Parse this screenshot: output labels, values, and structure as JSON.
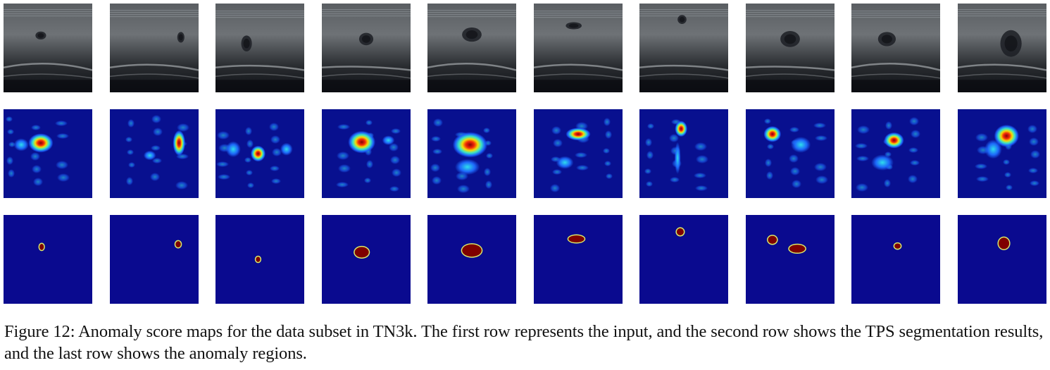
{
  "figure": {
    "caption": "Figure 12: Anomaly score maps for the data subset in TN3k. The first row represents the input, and the second row shows the TPS segmentation results, and the last row shows the anomaly regions.",
    "rows": [
      {
        "name": "input-ultrasound-row",
        "kind": "ultrasound"
      },
      {
        "name": "anomaly-score-map-row",
        "kind": "heatmap"
      },
      {
        "name": "anomaly-region-mask-row",
        "kind": "mask"
      }
    ],
    "samples": [
      {
        "nodule": [
          0.42,
          0.36,
          0.12,
          0.09
        ],
        "blobs": [
          [
            0.42,
            0.38,
            0.2,
            0.12
          ],
          [
            0.2,
            0.4,
            0.12,
            0.08
          ]
        ],
        "mask": [
          [
            0.43,
            0.36,
            0.05,
            0.07
          ]
        ]
      },
      {
        "nodule": [
          0.8,
          0.38,
          0.08,
          0.12
        ],
        "blobs": [
          [
            0.78,
            0.38,
            0.1,
            0.16
          ],
          [
            0.45,
            0.52,
            0.1,
            0.06
          ]
        ],
        "mask": [
          [
            0.77,
            0.33,
            0.06,
            0.07
          ]
        ]
      },
      {
        "nodule": [
          0.35,
          0.45,
          0.12,
          0.18
        ],
        "blobs": [
          [
            0.48,
            0.5,
            0.12,
            0.1
          ],
          [
            0.2,
            0.45,
            0.12,
            0.1
          ],
          [
            0.8,
            0.45,
            0.1,
            0.08
          ]
        ],
        "mask": [
          [
            0.48,
            0.5,
            0.05,
            0.06
          ]
        ]
      },
      {
        "nodule": [
          0.5,
          0.4,
          0.16,
          0.14
        ],
        "blobs": [
          [
            0.45,
            0.37,
            0.22,
            0.14
          ],
          [
            0.75,
            0.35,
            0.1,
            0.06
          ]
        ],
        "mask": [
          [
            0.45,
            0.42,
            0.16,
            0.12
          ]
        ]
      },
      {
        "nodule": [
          0.5,
          0.35,
          0.22,
          0.16
        ],
        "blobs": [
          [
            0.48,
            0.4,
            0.28,
            0.16
          ],
          [
            0.45,
            0.65,
            0.2,
            0.1
          ]
        ],
        "mask": [
          [
            0.5,
            0.4,
            0.22,
            0.14
          ]
        ]
      },
      {
        "nodule": [
          0.45,
          0.25,
          0.18,
          0.08
        ],
        "blobs": [
          [
            0.5,
            0.28,
            0.2,
            0.08
          ],
          [
            0.35,
            0.6,
            0.14,
            0.08
          ]
        ],
        "mask": [
          [
            0.48,
            0.27,
            0.18,
            0.08
          ]
        ]
      },
      {
        "nodule": [
          0.48,
          0.18,
          0.1,
          0.1
        ],
        "blobs": [
          [
            0.47,
            0.22,
            0.1,
            0.1
          ],
          [
            0.43,
            0.55,
            0.05,
            0.2
          ]
        ],
        "mask": [
          [
            0.46,
            0.19,
            0.08,
            0.08
          ]
        ]
      },
      {
        "nodule": [
          0.5,
          0.4,
          0.22,
          0.18
        ],
        "blobs": [
          [
            0.3,
            0.28,
            0.14,
            0.1
          ],
          [
            0.62,
            0.4,
            0.16,
            0.1
          ]
        ],
        "mask": [
          [
            0.3,
            0.28,
            0.1,
            0.09
          ],
          [
            0.58,
            0.38,
            0.18,
            0.09
          ]
        ]
      },
      {
        "nodule": [
          0.4,
          0.4,
          0.2,
          0.16
        ],
        "blobs": [
          [
            0.48,
            0.35,
            0.16,
            0.1
          ],
          [
            0.35,
            0.6,
            0.18,
            0.1
          ]
        ],
        "mask": [
          [
            0.52,
            0.35,
            0.07,
            0.06
          ]
        ]
      },
      {
        "nodule": [
          0.6,
          0.45,
          0.24,
          0.3
        ],
        "blobs": [
          [
            0.55,
            0.3,
            0.2,
            0.14
          ],
          [
            0.4,
            0.45,
            0.14,
            0.12
          ]
        ],
        "mask": [
          [
            0.52,
            0.32,
            0.12,
            0.13
          ]
        ]
      }
    ]
  },
  "colors": {
    "heat_background": "#08108f",
    "mask_background": "#0a0a8f",
    "mask_fill": "#7f0000",
    "mask_edge": "#d8e86a"
  }
}
